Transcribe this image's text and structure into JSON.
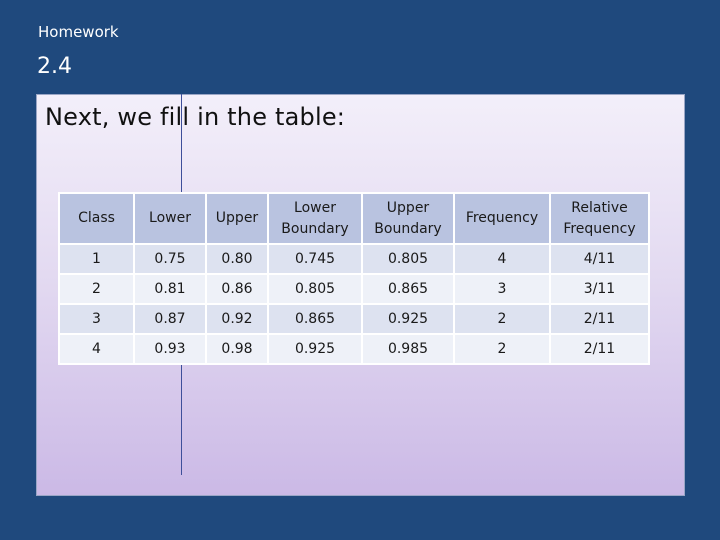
{
  "header": {
    "small_title": "Homework",
    "number": "2.4"
  },
  "content": {
    "title": "Next, we fill in the table:"
  },
  "table": {
    "columns": [
      "Class",
      "Lower",
      "Upper",
      "Lower\nBoundary",
      "Upper\nBoundary",
      "Frequency",
      "Relative\nFrequency"
    ],
    "rows": [
      [
        "1",
        "0.75",
        "0.80",
        "0.745",
        "0.805",
        "4",
        "4/11"
      ],
      [
        "2",
        "0.81",
        "0.86",
        "0.805",
        "0.865",
        "3",
        "3/11"
      ],
      [
        "3",
        "0.87",
        "0.92",
        "0.865",
        "0.925",
        "2",
        "2/11"
      ],
      [
        "4",
        "0.93",
        "0.98",
        "0.925",
        "0.985",
        "2",
        "2/11"
      ]
    ]
  },
  "colors": {
    "background": "#1f497d",
    "header_row": "#b9c3e0",
    "row_odd": "#dde2f0",
    "row_even": "#eef1f8"
  }
}
